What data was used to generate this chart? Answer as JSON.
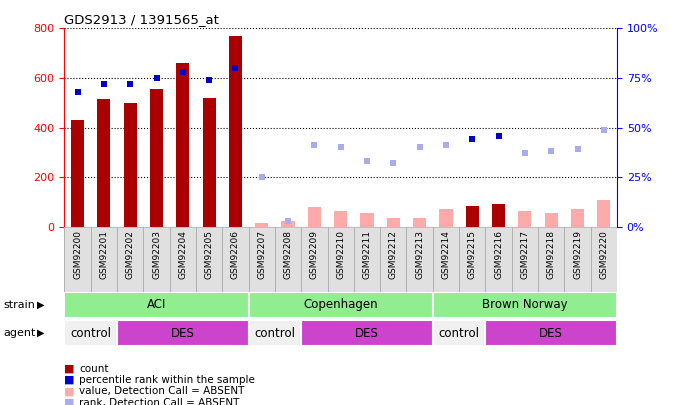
{
  "title": "GDS2913 / 1391565_at",
  "samples": [
    "GSM92200",
    "GSM92201",
    "GSM92202",
    "GSM92203",
    "GSM92204",
    "GSM92205",
    "GSM92206",
    "GSM92207",
    "GSM92208",
    "GSM92209",
    "GSM92210",
    "GSM92211",
    "GSM92212",
    "GSM92213",
    "GSM92214",
    "GSM92215",
    "GSM92216",
    "GSM92217",
    "GSM92218",
    "GSM92219",
    "GSM92220"
  ],
  "count_values": [
    430,
    515,
    500,
    555,
    660,
    520,
    770,
    15,
    25,
    80,
    65,
    55,
    35,
    35,
    70,
    85,
    90,
    65,
    55,
    70,
    110
  ],
  "count_absent": [
    false,
    false,
    false,
    false,
    false,
    false,
    false,
    true,
    true,
    true,
    true,
    true,
    true,
    true,
    true,
    false,
    false,
    true,
    true,
    true,
    true
  ],
  "rank_values": [
    68,
    72,
    72,
    75,
    78,
    74,
    80,
    25,
    3,
    41,
    40,
    33,
    32,
    40,
    41,
    44,
    46,
    37,
    38,
    39,
    49
  ],
  "rank_absent": [
    false,
    false,
    false,
    false,
    false,
    false,
    false,
    true,
    true,
    true,
    true,
    true,
    true,
    true,
    true,
    false,
    false,
    true,
    true,
    true,
    true
  ],
  "ylim_left": [
    0,
    800
  ],
  "ylim_right": [
    0,
    100
  ],
  "yticks_left": [
    0,
    200,
    400,
    600,
    800
  ],
  "yticks_right": [
    0,
    25,
    50,
    75,
    100
  ],
  "strain_groups": [
    {
      "label": "ACI",
      "start": 0,
      "end": 7
    },
    {
      "label": "Copenhagen",
      "start": 7,
      "end": 14
    },
    {
      "label": "Brown Norway",
      "start": 14,
      "end": 21
    }
  ],
  "agent_groups": [
    {
      "label": "control",
      "start": 0,
      "end": 2,
      "is_des": false
    },
    {
      "label": "DES",
      "start": 2,
      "end": 7,
      "is_des": true
    },
    {
      "label": "control",
      "start": 7,
      "end": 9,
      "is_des": false
    },
    {
      "label": "DES",
      "start": 9,
      "end": 14,
      "is_des": true
    },
    {
      "label": "control",
      "start": 14,
      "end": 16,
      "is_des": false
    },
    {
      "label": "DES",
      "start": 16,
      "end": 21,
      "is_des": true
    }
  ],
  "count_color_present": "#aa0000",
  "count_color_absent": "#ffaaaa",
  "rank_color_present": "#0000cc",
  "rank_color_absent": "#aaaaee",
  "bg_color": "#ffffff",
  "strain_bg": "#90ee90",
  "control_bg": "#f0f0f0",
  "des_bg": "#cc44cc",
  "legend_items": [
    {
      "label": "count",
      "color": "#aa0000"
    },
    {
      "label": "percentile rank within the sample",
      "color": "#0000cc"
    },
    {
      "label": "value, Detection Call = ABSENT",
      "color": "#ffaaaa"
    },
    {
      "label": "rank, Detection Call = ABSENT",
      "color": "#aaaaee"
    }
  ]
}
